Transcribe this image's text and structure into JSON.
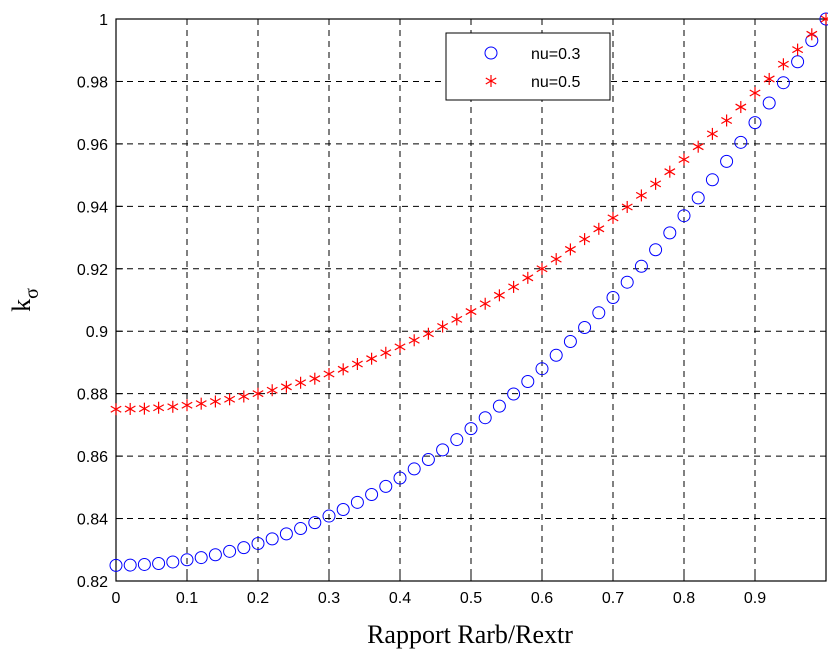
{
  "chart_data": {
    "type": "scatter",
    "xlabel": "Rapport Rarb/Rextr",
    "ylabel": "k",
    "ylabel_subscript": "σ",
    "xlim": [
      0,
      1
    ],
    "ylim": [
      0.82,
      1
    ],
    "xticks": [
      0,
      0.1,
      0.2,
      0.3,
      0.4,
      0.5,
      0.6,
      0.7,
      0.8,
      0.9
    ],
    "yticks": [
      0.82,
      0.84,
      0.86,
      0.88,
      0.9,
      0.92,
      0.94,
      0.96,
      0.98,
      1
    ],
    "grid": true,
    "legend": "top",
    "x": [
      0,
      0.02,
      0.04,
      0.06,
      0.08,
      0.1,
      0.12,
      0.14,
      0.16,
      0.18,
      0.2,
      0.22,
      0.24,
      0.26,
      0.28,
      0.3,
      0.32,
      0.34,
      0.36,
      0.38,
      0.4,
      0.42,
      0.44,
      0.46,
      0.48,
      0.5,
      0.52,
      0.54,
      0.56,
      0.58,
      0.6,
      0.62,
      0.64,
      0.66,
      0.68,
      0.7,
      0.72,
      0.74,
      0.76,
      0.78,
      0.8,
      0.82,
      0.84,
      0.86,
      0.88,
      0.9,
      0.92,
      0.94,
      0.96,
      0.98,
      1
    ],
    "series": [
      {
        "name": "nu=0.3",
        "color": "#0000ff",
        "marker": "circle",
        "values": [
          0.825,
          0.8251,
          0.8253,
          0.8256,
          0.8261,
          0.8268,
          0.8275,
          0.8284,
          0.8295,
          0.8307,
          0.832,
          0.8335,
          0.8351,
          0.8368,
          0.8387,
          0.8408,
          0.8429,
          0.8452,
          0.8477,
          0.8503,
          0.853,
          0.8559,
          0.8589,
          0.862,
          0.8653,
          0.8688,
          0.8723,
          0.876,
          0.8799,
          0.8839,
          0.888,
          0.8923,
          0.8967,
          0.9012,
          0.9059,
          0.9108,
          0.9157,
          0.9208,
          0.9261,
          0.9315,
          0.937,
          0.9427,
          0.9485,
          0.9544,
          0.9605,
          0.9668,
          0.9731,
          0.9796,
          0.9863,
          0.9931,
          1
        ]
      },
      {
        "name": "nu=0.5",
        "color": "#ff0000",
        "marker": "asterisk",
        "values": [
          0.875,
          0.8751,
          0.8752,
          0.8755,
          0.8758,
          0.8763,
          0.8768,
          0.8775,
          0.8782,
          0.8791,
          0.88,
          0.8811,
          0.8822,
          0.8835,
          0.8848,
          0.8863,
          0.8878,
          0.8895,
          0.8912,
          0.8931,
          0.895,
          0.8971,
          0.8992,
          0.9015,
          0.9038,
          0.9063,
          0.9088,
          0.9115,
          0.9142,
          0.9171,
          0.92,
          0.9231,
          0.9262,
          0.9295,
          0.9328,
          0.9363,
          0.9398,
          0.9435,
          0.9472,
          0.9511,
          0.955,
          0.9591,
          0.9632,
          0.9675,
          0.9718,
          0.9763,
          0.9808,
          0.9855,
          0.9902,
          0.9951,
          1
        ]
      }
    ]
  }
}
